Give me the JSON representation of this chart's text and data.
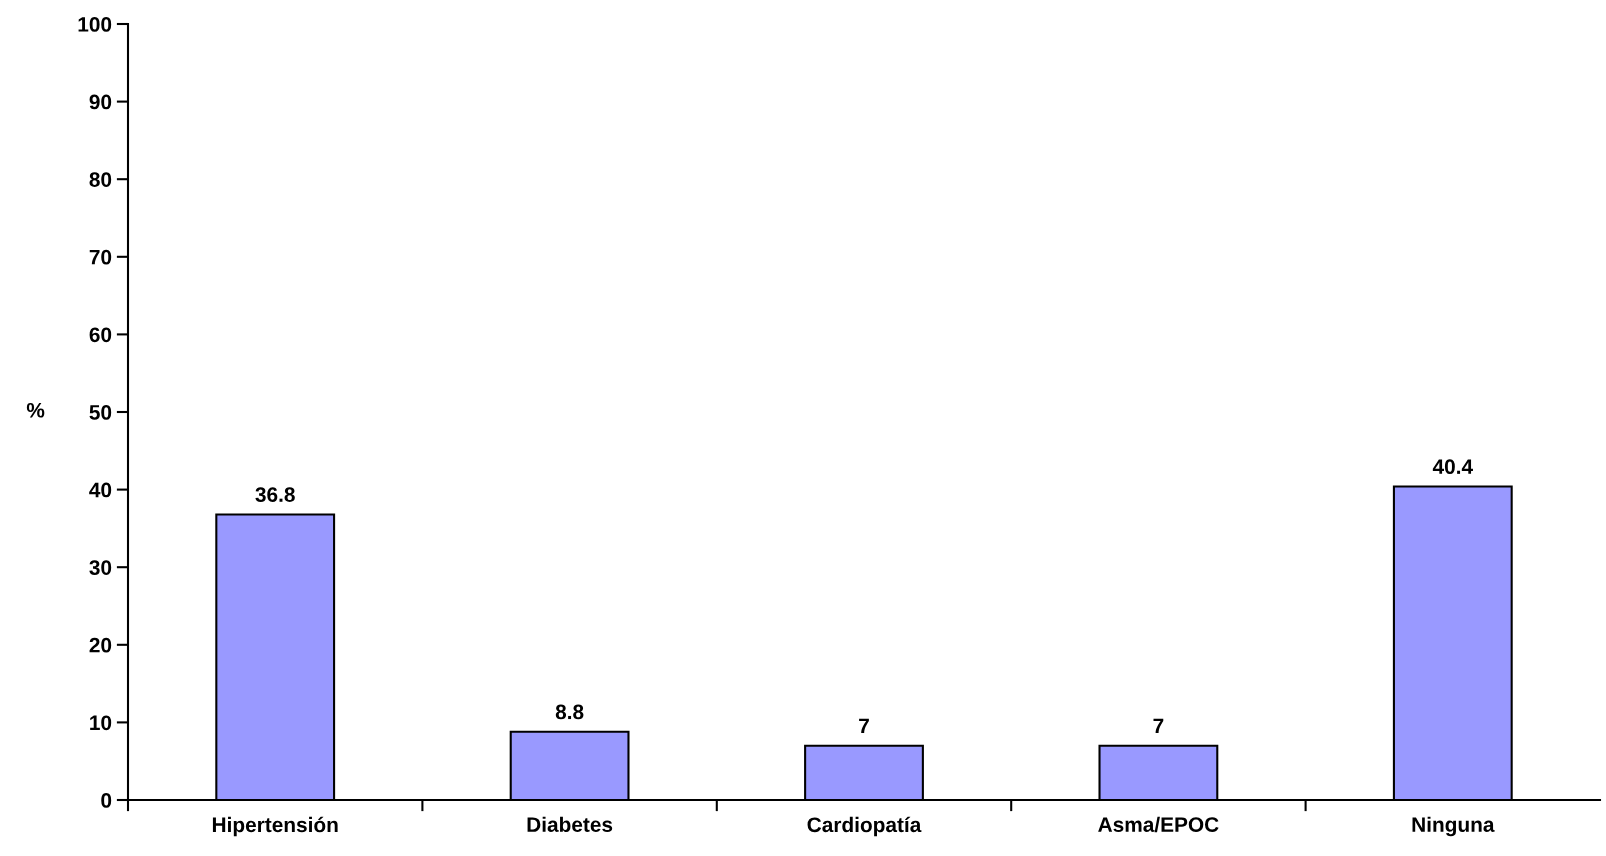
{
  "chart_data": {
    "type": "bar",
    "ylabel": "%",
    "categories": [
      "Hipertensión",
      "Diabetes",
      "Cardiopatía",
      "Asma/EPOC",
      "Ninguna"
    ],
    "values": [
      36.8,
      8.8,
      7,
      7,
      40.4
    ],
    "color": "#9999ff",
    "ylim": [
      0,
      100
    ],
    "yticks": [
      0,
      10,
      20,
      30,
      40,
      50,
      60,
      70,
      80,
      90,
      100
    ],
    "data_labels": true,
    "grid": false,
    "legend": false
  }
}
